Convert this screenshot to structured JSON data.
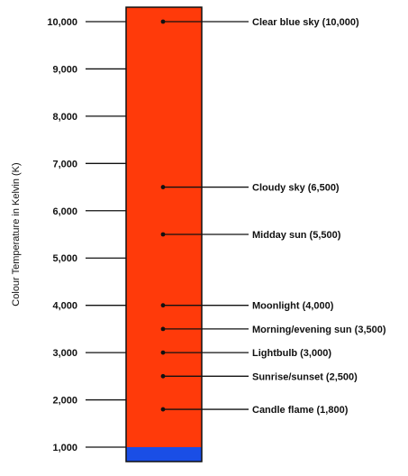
{
  "axis": {
    "title": "Colour Temperature in Kelvin (K)",
    "ticks": [
      {
        "value": 1000,
        "label": "1,000"
      },
      {
        "value": 2000,
        "label": "2,000"
      },
      {
        "value": 3000,
        "label": "3,000"
      },
      {
        "value": 4000,
        "label": "4,000"
      },
      {
        "value": 5000,
        "label": "5,000"
      },
      {
        "value": 6000,
        "label": "6,000"
      },
      {
        "value": 7000,
        "label": "7,000"
      },
      {
        "value": 8000,
        "label": "8,000"
      },
      {
        "value": 9000,
        "label": "9,000"
      },
      {
        "value": 10000,
        "label": "10,000"
      }
    ]
  },
  "gradient": [
    {
      "value": 1000,
      "color": "#ff3a0a"
    },
    {
      "value": 2000,
      "color": "#ff7a10"
    },
    {
      "value": 3000,
      "color": "#ffbf14"
    },
    {
      "value": 4000,
      "color": "#ffe274"
    },
    {
      "value": 5000,
      "color": "#fff2cf"
    },
    {
      "value": 5500,
      "color": "#ffffff"
    },
    {
      "value": 6500,
      "color": "#bfeefc"
    },
    {
      "value": 8000,
      "color": "#22ccff"
    },
    {
      "value": 9000,
      "color": "#1196f8"
    },
    {
      "value": 10000,
      "color": "#1a6ef0"
    },
    {
      "value": 10300,
      "color": "#1a4ee6"
    }
  ],
  "annotations": [
    {
      "value": 10000,
      "label": "Clear blue sky (10,000)"
    },
    {
      "value": 6500,
      "label": "Cloudy sky (6,500)"
    },
    {
      "value": 5500,
      "label": "Midday sun (5,500)"
    },
    {
      "value": 4000,
      "label": "Moonlight (4,000)"
    },
    {
      "value": 3500,
      "label": "Morning/evening sun (3,500)"
    },
    {
      "value": 3000,
      "label": "Lightbulb (3,000)"
    },
    {
      "value": 2500,
      "label": "Sunrise/sunset (2,500)"
    },
    {
      "value": 1800,
      "label": "Candle flame (1,800)"
    }
  ],
  "colors": {
    "bar_border": "#111111",
    "line": "#111111",
    "text": "#111111"
  }
}
